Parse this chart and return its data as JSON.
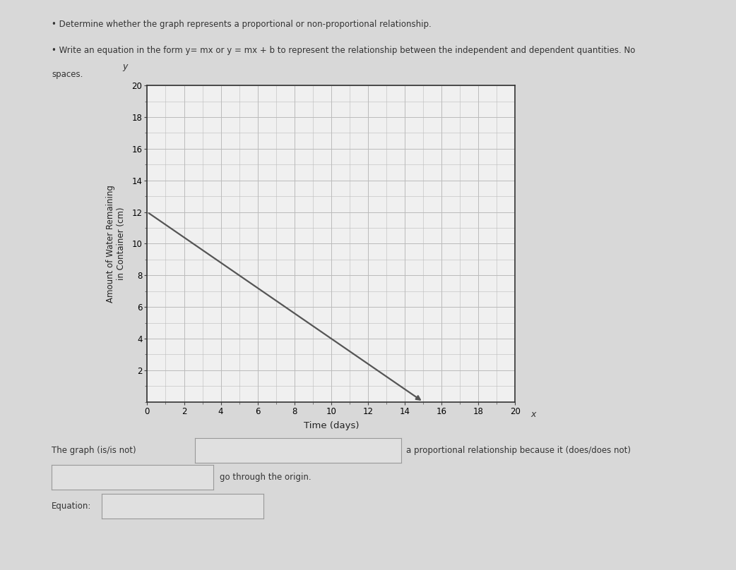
{
  "title_line1": "• Determine whether the graph represents a proportional or non-proportional relationship.",
  "title_line2": "• Write an equation in the form y= mx or y = mx + b to represent the relationship between the independent and dependent quantities. No",
  "title_line3": "spaces.",
  "xlabel": "Time (days)",
  "ylabel": "Amount of Water Remaining\nin Container (cm)",
  "x_label_axis": "x",
  "y_label_axis": "y",
  "xmin": 0,
  "xmax": 20,
  "ymin": 0,
  "ymax": 20,
  "xticks": [
    0,
    2,
    4,
    6,
    8,
    10,
    12,
    14,
    16,
    18,
    20
  ],
  "yticks": [
    2,
    4,
    6,
    8,
    10,
    12,
    14,
    16,
    18,
    20
  ],
  "line_x": [
    0,
    15
  ],
  "line_y": [
    12,
    0
  ],
  "line_color": "#555555",
  "line_width": 1.6,
  "grid_color": "#bbbbbb",
  "background_color": "#f0f0f0",
  "page_background": "#d8d8d8",
  "bottom_text1": "The graph (is/is not)",
  "bottom_text2": "a proportional relationship because it (does/does not)",
  "bottom_text3": "go through the origin.",
  "bottom_text4": "Equation:",
  "box_edgecolor": "#999999",
  "box_facecolor": "#e0e0e0",
  "text_color": "#333333"
}
